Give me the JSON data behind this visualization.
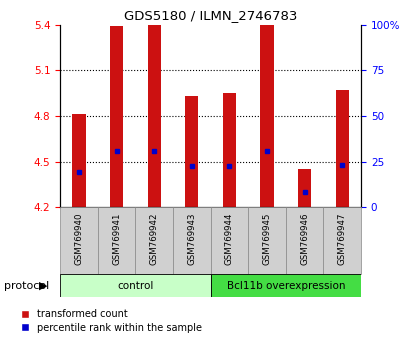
{
  "title": "GDS5180 / ILMN_2746783",
  "samples": [
    "GSM769940",
    "GSM769941",
    "GSM769942",
    "GSM769943",
    "GSM769944",
    "GSM769945",
    "GSM769946",
    "GSM769947"
  ],
  "bar_bottom": 4.2,
  "bar_tops": [
    4.81,
    5.39,
    5.4,
    4.93,
    4.95,
    5.4,
    4.45,
    4.97
  ],
  "percentile_values": [
    4.43,
    4.57,
    4.57,
    4.47,
    4.47,
    4.57,
    4.3,
    4.48
  ],
  "ylim": [
    4.2,
    5.4
  ],
  "yticks_left": [
    4.2,
    4.5,
    4.8,
    5.1,
    5.4
  ],
  "yticks_right": [
    0,
    25,
    50,
    75,
    100
  ],
  "group_labels": [
    "control",
    "Bcl11b overexpression"
  ],
  "group_colors_light": "#c8ffc8",
  "group_colors_dark": "#44dd44",
  "bar_color": "#cc1111",
  "percentile_color": "#0000cc",
  "bar_width": 0.35,
  "legend_items": [
    "transformed count",
    "percentile rank within the sample"
  ],
  "legend_colors": [
    "#cc1111",
    "#0000cc"
  ],
  "protocol_label": "protocol"
}
